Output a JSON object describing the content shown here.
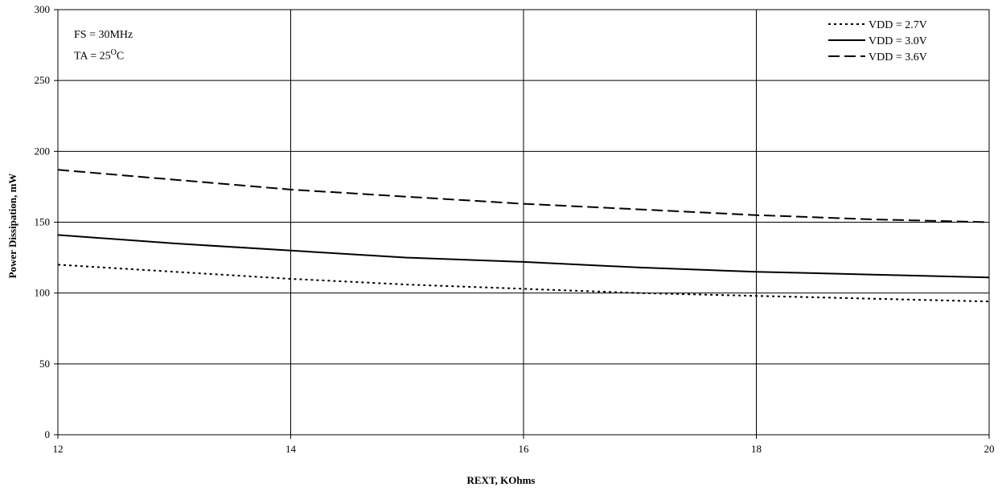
{
  "chart_data": {
    "type": "line",
    "xlabel": "REXT, KOhms",
    "ylabel": "Power Dissipation, mW",
    "xlim": [
      12,
      20
    ],
    "ylim": [
      0,
      300
    ],
    "xticks": [
      "12",
      "14",
      "16",
      "18",
      "20"
    ],
    "yticks": [
      "0",
      "50",
      "100",
      "150",
      "200",
      "250",
      "300"
    ],
    "grid": true,
    "legend_position": "top-right",
    "annotations": {
      "fs": "FS = 30MHz",
      "ta_prefix": "TA = 25",
      "ta_sup": "O",
      "ta_suffix": "C"
    },
    "x": [
      12,
      13,
      14,
      15,
      16,
      17,
      18,
      19,
      20
    ],
    "series": [
      {
        "name": "VDD = 2.7V",
        "dash": "dotted",
        "values": [
          120,
          115,
          110,
          106,
          103,
          100,
          98,
          96,
          94
        ]
      },
      {
        "name": "VDD = 3.0V",
        "dash": "solid",
        "values": [
          141,
          135,
          130,
          125,
          122,
          118,
          115,
          113,
          111
        ]
      },
      {
        "name": "VDD = 3.6V",
        "dash": "dashed",
        "values": [
          187,
          180,
          173,
          168,
          163,
          159,
          155,
          152,
          150
        ]
      }
    ]
  }
}
